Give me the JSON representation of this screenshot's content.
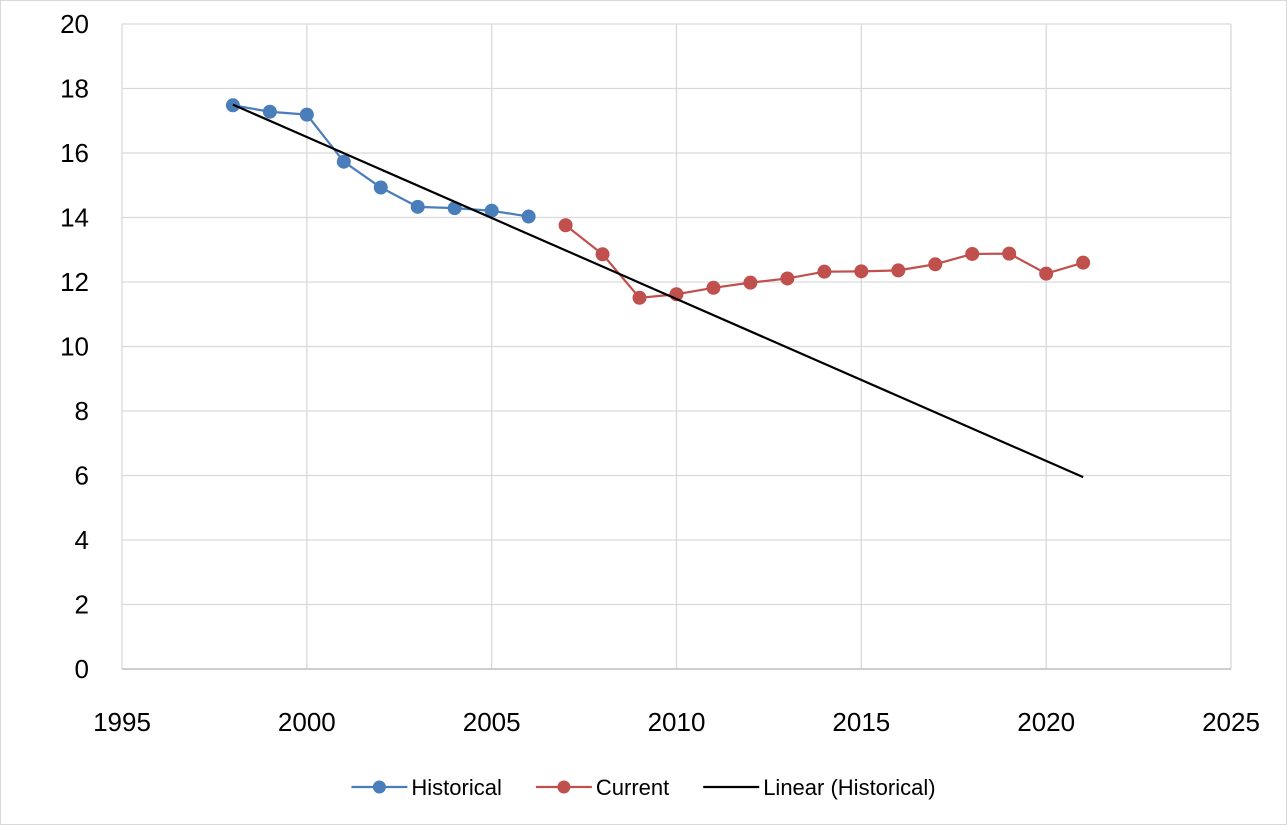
{
  "chart_data": {
    "type": "line",
    "title": "",
    "xlabel": "",
    "ylabel": "",
    "xlim": [
      1995,
      2025
    ],
    "ylim": [
      0,
      20
    ],
    "x_ticks": [
      1995,
      2000,
      2005,
      2010,
      2015,
      2020,
      2025
    ],
    "y_ticks": [
      0,
      2,
      4,
      6,
      8,
      10,
      12,
      14,
      16,
      18,
      20
    ],
    "grid": true,
    "legend_position": "bottom",
    "series": [
      {
        "name": "Historical",
        "color": "#4a7ebb",
        "marker": "circle",
        "x": [
          1998,
          1999,
          2000,
          2001,
          2002,
          2003,
          2004,
          2005,
          2006
        ],
        "y": [
          17.48,
          17.28,
          17.19,
          15.73,
          14.93,
          14.33,
          14.29,
          14.21,
          14.03
        ]
      },
      {
        "name": "Current",
        "color": "#c0504d",
        "marker": "circle",
        "x": [
          2007,
          2008,
          2009,
          2010,
          2011,
          2012,
          2013,
          2014,
          2015,
          2016,
          2017,
          2018,
          2019,
          2020,
          2021
        ],
        "y": [
          13.76,
          12.86,
          11.51,
          11.62,
          11.82,
          11.98,
          12.11,
          12.32,
          12.33,
          12.36,
          12.55,
          12.87,
          12.88,
          12.26,
          12.6
        ]
      },
      {
        "name": "Linear (Historical)",
        "color": "#000000",
        "marker": "none",
        "x": [
          1998,
          2021
        ],
        "y": [
          17.5,
          5.95
        ]
      }
    ]
  }
}
